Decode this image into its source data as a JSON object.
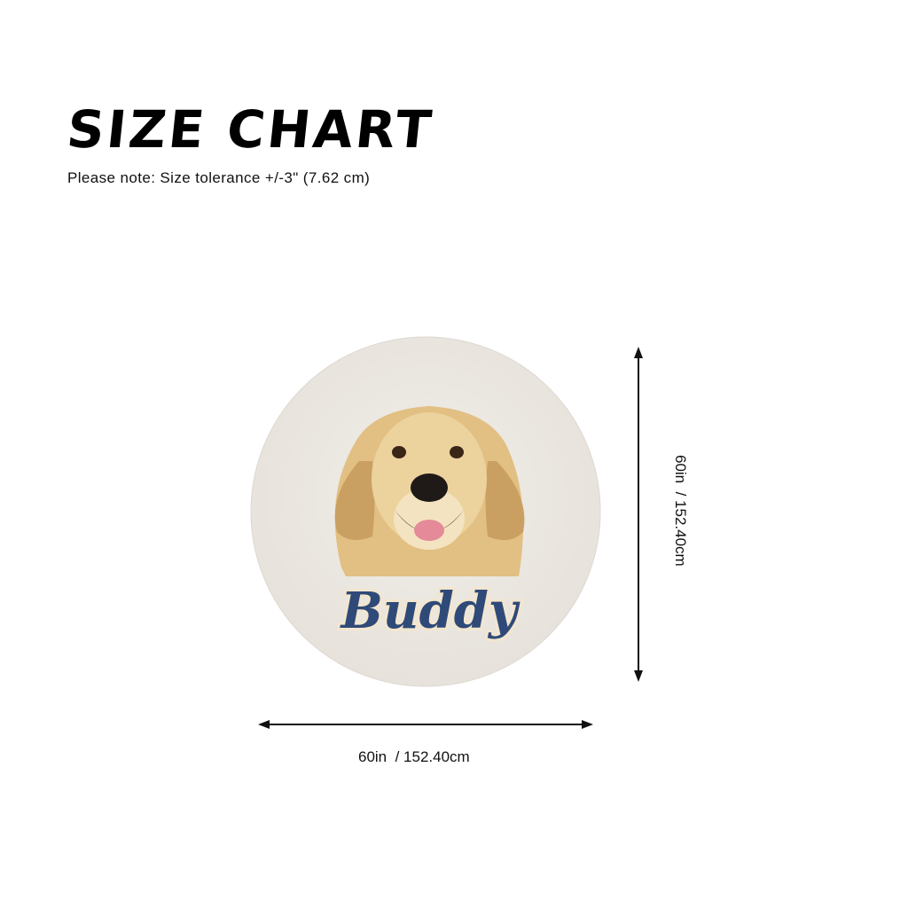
{
  "header": {
    "title": "SIZE CHART",
    "note": "Please note: Size tolerance +/-3\" (7.62 cm)"
  },
  "product": {
    "shape": "round rug",
    "pet_name": "Buddy",
    "pet": "golden retriever",
    "background_color": "#ece8e2",
    "name_color": "#2f4a78"
  },
  "dimensions": {
    "width_label": "60in  / 152.40cm",
    "height_label": "60in  / 152.40cm"
  }
}
